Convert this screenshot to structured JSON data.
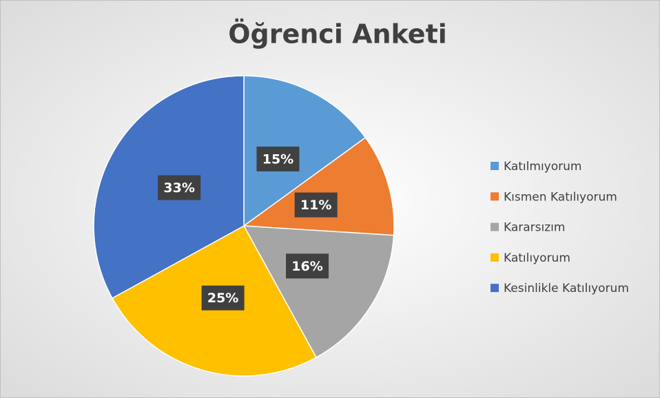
{
  "chart_data": {
    "type": "pie",
    "title": "Öğrenci Anketi",
    "categories": [
      "Katılmıyorum",
      "Kısmen Katılıyorum",
      "Kararsızım",
      "Katılıyorum",
      "Kesinlikle Katılıyorum"
    ],
    "values": [
      15,
      11,
      16,
      25,
      33
    ],
    "value_labels": [
      "15%",
      "11%",
      "16%",
      "25%",
      "33%"
    ],
    "colors": [
      "#5b9bd5",
      "#ed7d31",
      "#a5a5a5",
      "#ffc000",
      "#4472c4"
    ],
    "legend": "right"
  }
}
